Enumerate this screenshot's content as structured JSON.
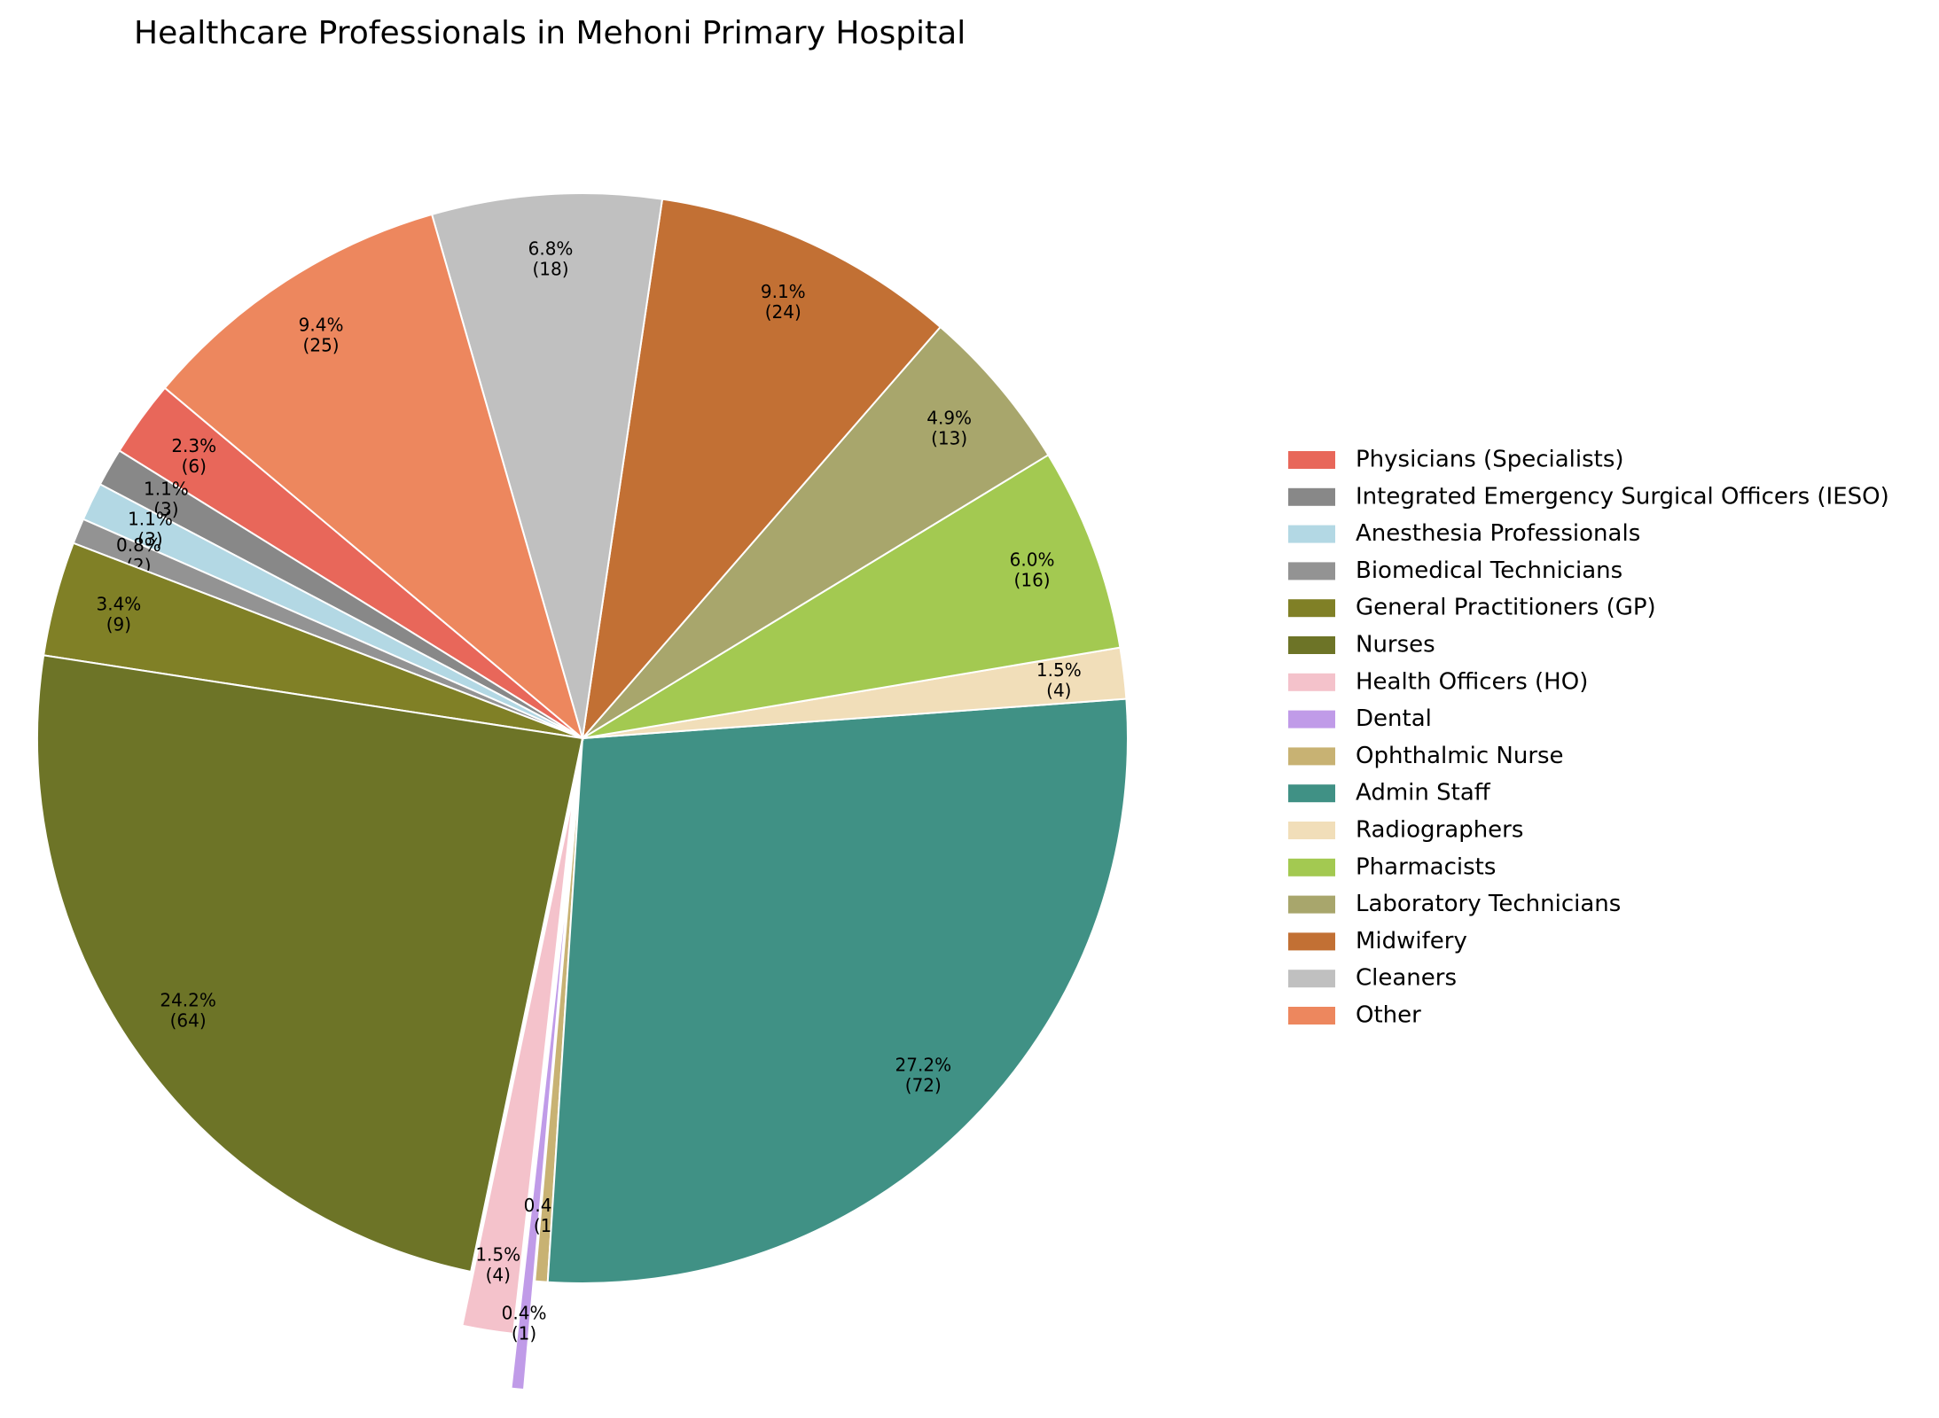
{
  "chart_data": {
    "type": "pie",
    "title": "Healthcare Professionals in Mehoni Primary Hospital",
    "labels": [
      "Physicians (Specialists)",
      "Integrated Emergency Surgical Officers (IESO)",
      "Anesthesia Professionals",
      "Biomedical Technicians",
      "General Practitioners (GP)",
      "Nurses",
      "Health Officers (HO)",
      "Dental",
      "Ophthalmic Nurse",
      "Admin Staff",
      "Radiographers",
      "Pharmacists",
      "Laboratory Technicians",
      "Midwifery",
      "Cleaners",
      "Other"
    ],
    "values": [
      6,
      3,
      3,
      2,
      9,
      64,
      4,
      1,
      1,
      72,
      4,
      16,
      13,
      24,
      18,
      25
    ],
    "value_labels": [
      "(6)",
      "(3)",
      "(3)",
      "(2)",
      "(9)",
      "(64)",
      "(4)",
      "(1)",
      "(1)",
      "(72)",
      "(4)",
      "(16)",
      "(13)",
      "(24)",
      "(18)",
      "(25)"
    ],
    "percent_labels": [
      "2.3%",
      "1.1%",
      "1.1%",
      "0.8%",
      "3.4%",
      "24.2%",
      "1.5%",
      "0.4%",
      "0.4%",
      "27.2%",
      "1.5%",
      "6.0%",
      "4.9%",
      "9.1%",
      "6.8%",
      "9.4%"
    ],
    "colors": [
      "#e8675a",
      "#888888",
      "#b3d8e4",
      "#939393",
      "#808026",
      "#6d7427",
      "#f4c2cb",
      "#c09be8",
      "#c8b273",
      "#409185",
      "#f1deb9",
      "#a3c951",
      "#a8a66c",
      "#c27034",
      "#c0c0c0",
      "#ed875e"
    ],
    "explode": [
      0,
      0,
      0,
      0,
      0,
      0,
      0.1,
      0.2,
      0,
      0,
      0,
      0,
      0,
      0,
      0,
      0
    ],
    "start_angle": 140,
    "legend": "right"
  }
}
